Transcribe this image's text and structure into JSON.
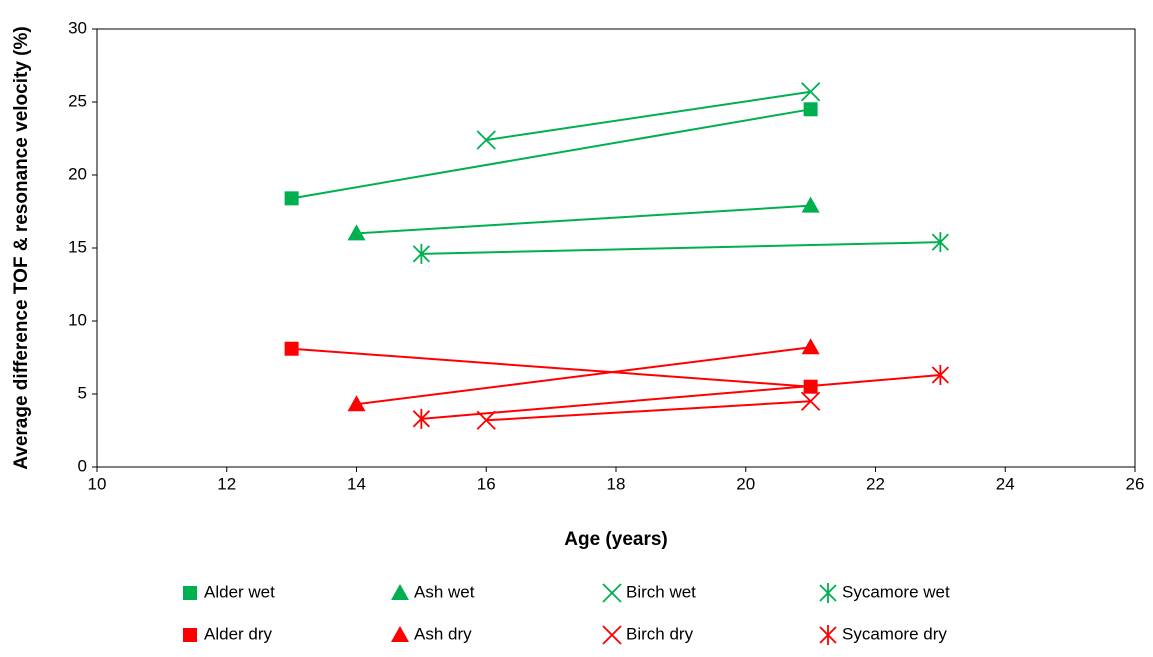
{
  "chart_data": {
    "type": "line",
    "x_label": "Age (years)",
    "y_label": "Average difference TOF & resonance velocity (%)",
    "xlim": [
      10,
      26
    ],
    "xticks": [
      10,
      12,
      14,
      16,
      18,
      20,
      22,
      24,
      26
    ],
    "ylim": [
      0,
      30
    ],
    "yticks": [
      0,
      5,
      10,
      15,
      20,
      25,
      30
    ],
    "grid": false,
    "legend": "bottom",
    "series": [
      {
        "name": "Alder wet",
        "color": "#00b050",
        "marker": "square",
        "x": [
          13,
          21
        ],
        "values": [
          18.4,
          24.5
        ]
      },
      {
        "name": "Ash wet",
        "color": "#00b050",
        "marker": "triangle",
        "x": [
          14,
          21
        ],
        "values": [
          16.0,
          17.9
        ]
      },
      {
        "name": "Birch wet",
        "color": "#00b050",
        "marker": "x",
        "x": [
          16,
          21
        ],
        "values": [
          22.4,
          25.7
        ]
      },
      {
        "name": "Sycamore wet",
        "color": "#00b050",
        "marker": "asterisk",
        "x": [
          15,
          23
        ],
        "values": [
          14.6,
          15.4
        ]
      },
      {
        "name": "Alder dry",
        "color": "#ff0000",
        "marker": "square",
        "x": [
          13,
          21
        ],
        "values": [
          8.1,
          5.5
        ]
      },
      {
        "name": "Ash dry",
        "color": "#ff0000",
        "marker": "triangle",
        "x": [
          14,
          21
        ],
        "values": [
          4.3,
          8.2
        ]
      },
      {
        "name": "Birch dry",
        "color": "#ff0000",
        "marker": "x",
        "x": [
          16,
          21
        ],
        "values": [
          3.2,
          4.5
        ]
      },
      {
        "name": "Sycamore dry",
        "color": "#ff0000",
        "marker": "asterisk",
        "x": [
          15,
          23
        ],
        "values": [
          3.3,
          6.3
        ]
      }
    ]
  }
}
